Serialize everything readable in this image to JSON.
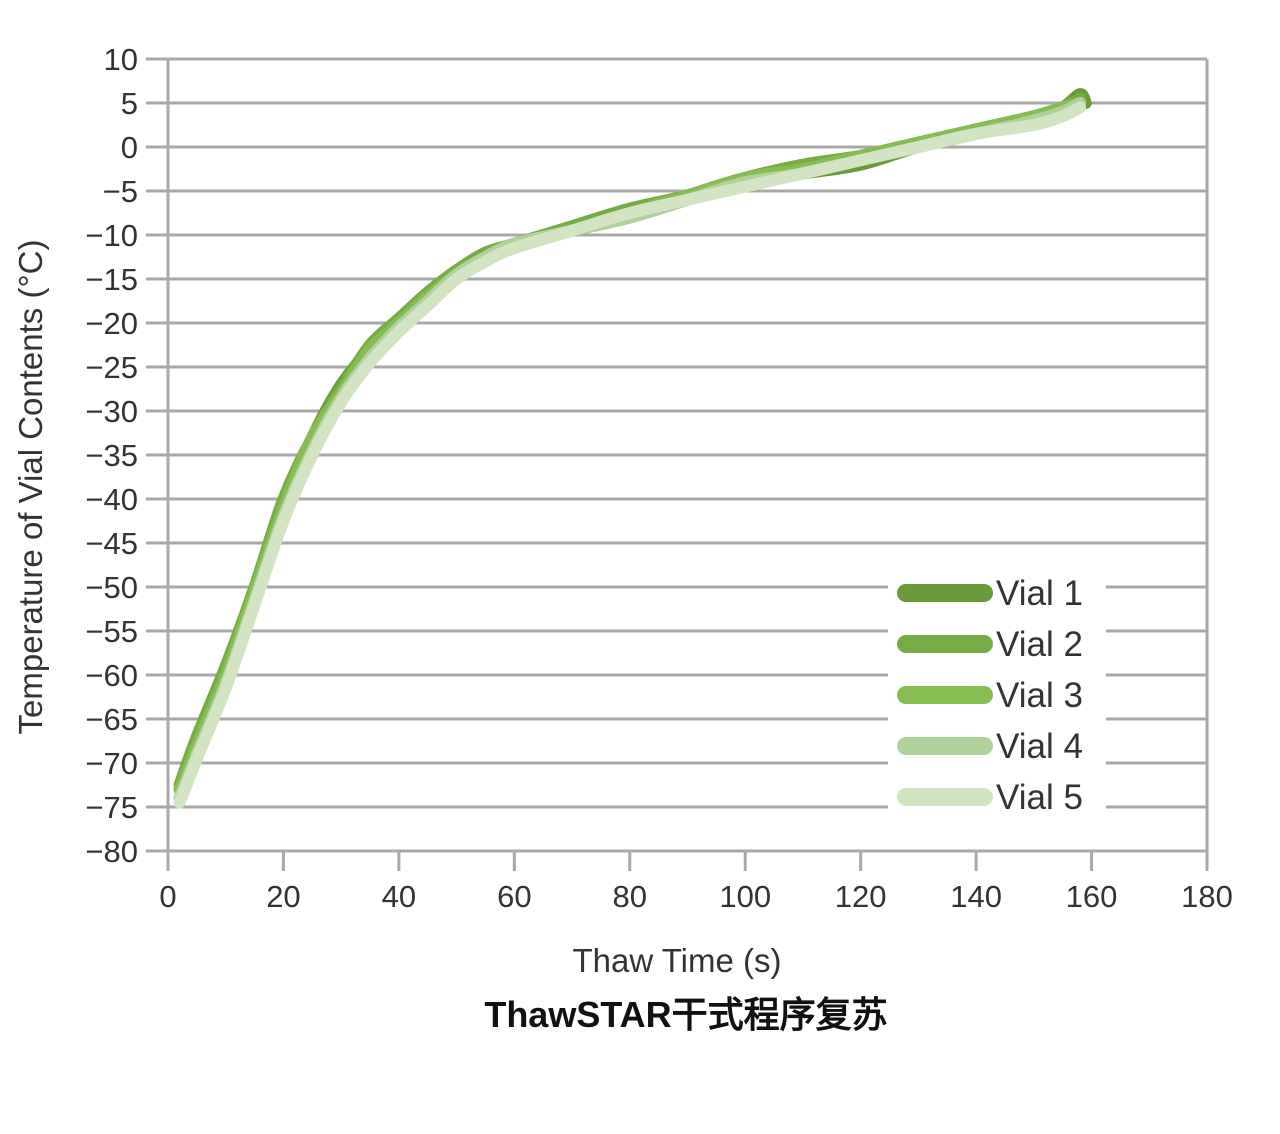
{
  "chart_data": {
    "type": "line",
    "caption": "ThawSTAR干式程序复苏",
    "xlabel": "Thaw Time (s)",
    "ylabel": "Temperature of Vial Contents (°C)",
    "xlim": [
      0,
      180
    ],
    "ylim": [
      -80,
      10
    ],
    "x_ticks": [
      "0",
      "20",
      "40",
      "60",
      "80",
      "100",
      "120",
      "140",
      "160",
      "180"
    ],
    "y_ticks": [
      "10",
      "5",
      "0",
      "−5",
      "−10",
      "−15",
      "−20",
      "−25",
      "−30",
      "−35",
      "−40",
      "−45",
      "−50",
      "−55",
      "−60",
      "−65",
      "−70",
      "−75",
      "−80"
    ],
    "grid": "horizontal",
    "legend_position": "bottom-right",
    "series": [
      {
        "name": "Vial 1",
        "color": "#6a9a3a",
        "x": [
          2,
          5,
          10,
          15,
          20,
          25,
          30,
          35,
          40,
          45,
          50,
          55,
          60,
          70,
          80,
          90,
          100,
          110,
          120,
          130,
          140,
          150,
          155,
          158,
          159
        ],
        "y": [
          -73,
          -68,
          -60,
          -51,
          -41,
          -33,
          -27,
          -23,
          -20,
          -17,
          -14.5,
          -12.5,
          -11,
          -9.5,
          -8,
          -6,
          -4,
          -3,
          -2,
          0,
          1.5,
          3,
          4.5,
          6,
          5
        ]
      },
      {
        "name": "Vial 2",
        "color": "#76ac43",
        "x": [
          2,
          5,
          10,
          15,
          20,
          25,
          30,
          35,
          40,
          45,
          50,
          55,
          60,
          70,
          80,
          90,
          100,
          110,
          120,
          130,
          140,
          150,
          155,
          158
        ],
        "y": [
          -72.5,
          -67,
          -59,
          -50,
          -40,
          -33,
          -27.5,
          -22.5,
          -19.5,
          -16.5,
          -14,
          -12,
          -11,
          -9,
          -7,
          -5.5,
          -3.5,
          -2,
          -1,
          0.5,
          2,
          3.5,
          4.5,
          5.5
        ]
      },
      {
        "name": "Vial 3",
        "color": "#86bd52",
        "x": [
          2,
          5,
          10,
          15,
          20,
          25,
          30,
          35,
          40,
          45,
          50,
          55,
          60,
          70,
          80,
          90,
          100,
          110,
          120,
          130,
          140,
          150,
          155,
          158
        ],
        "y": [
          -73,
          -68,
          -60,
          -50.5,
          -41,
          -33,
          -28,
          -23,
          -20,
          -17,
          -14.5,
          -12.5,
          -11,
          -9.5,
          -7.5,
          -5.5,
          -3.5,
          -2.5,
          -1,
          0.5,
          2,
          3.5,
          4.5,
          5
        ]
      },
      {
        "name": "Vial 4",
        "color": "#b1d19a",
        "x": [
          2,
          5,
          10,
          15,
          20,
          25,
          30,
          35,
          40,
          45,
          50,
          55,
          60,
          70,
          80,
          90,
          100,
          110,
          120,
          130,
          140,
          150,
          155,
          158
        ],
        "y": [
          -74,
          -69,
          -61,
          -51.5,
          -42,
          -34.5,
          -28.5,
          -24,
          -20.5,
          -17.5,
          -14.5,
          -12.5,
          -11,
          -9.5,
          -8,
          -6,
          -4,
          -3,
          -1.5,
          0,
          1.5,
          3,
          4,
          5
        ]
      },
      {
        "name": "Vial 5",
        "color": "#d3e4c3",
        "x": [
          2,
          5,
          10,
          15,
          20,
          25,
          30,
          35,
          40,
          45,
          50,
          55,
          60,
          70,
          80,
          90,
          100,
          110,
          120,
          130,
          140,
          150,
          155,
          158
        ],
        "y": [
          -74.5,
          -69.5,
          -61.5,
          -52,
          -42.5,
          -35,
          -29,
          -24.5,
          -21,
          -18,
          -15,
          -13,
          -11.5,
          -9.5,
          -7.5,
          -6,
          -4.5,
          -3,
          -1.5,
          0,
          1.5,
          2.5,
          3.5,
          4.5
        ]
      }
    ]
  }
}
